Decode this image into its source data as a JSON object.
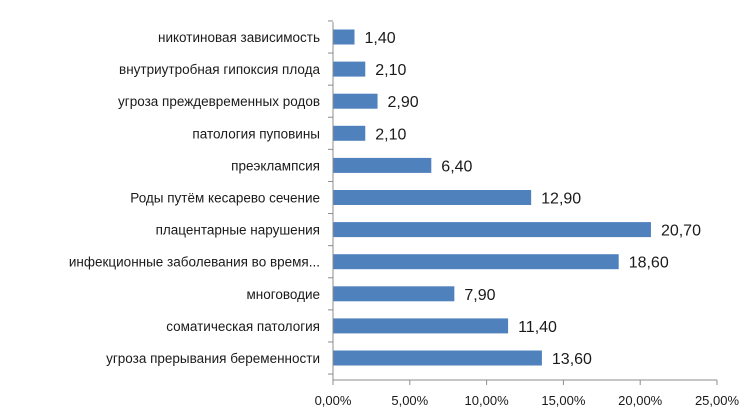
{
  "chart_data": {
    "type": "bar",
    "orientation": "horizontal",
    "categories": [
      "никотиновая зависимость",
      "внутриутробная гипоксия плода",
      "угроза преждевременных родов",
      "патология пуповины",
      "преэклампсия",
      "Роды путём кесарево сечение",
      "плацентарные нарушения",
      "инфекционные заболевания во время...",
      "многоводие",
      "соматическая патология",
      "угроза прерывания беременности"
    ],
    "values": [
      1.4,
      2.1,
      2.9,
      2.1,
      6.4,
      12.9,
      20.7,
      18.6,
      7.9,
      11.4,
      13.6
    ],
    "value_labels": [
      "1,40",
      "2,10",
      "2,90",
      "2,10",
      "6,40",
      "12,90",
      "20,70",
      "18,60",
      "7,90",
      "11,40",
      "13,60"
    ],
    "xlim": [
      0,
      25
    ],
    "x_ticks": [
      0,
      5,
      10,
      15,
      20,
      25
    ],
    "x_tick_labels": [
      "0,00%",
      "5,00%",
      "10,00%",
      "15,00%",
      "20,00%",
      "25,00%"
    ],
    "title": "",
    "xlabel": "",
    "ylabel": "",
    "grid": false,
    "legend": "none",
    "bar_color": "#4f81bd"
  }
}
